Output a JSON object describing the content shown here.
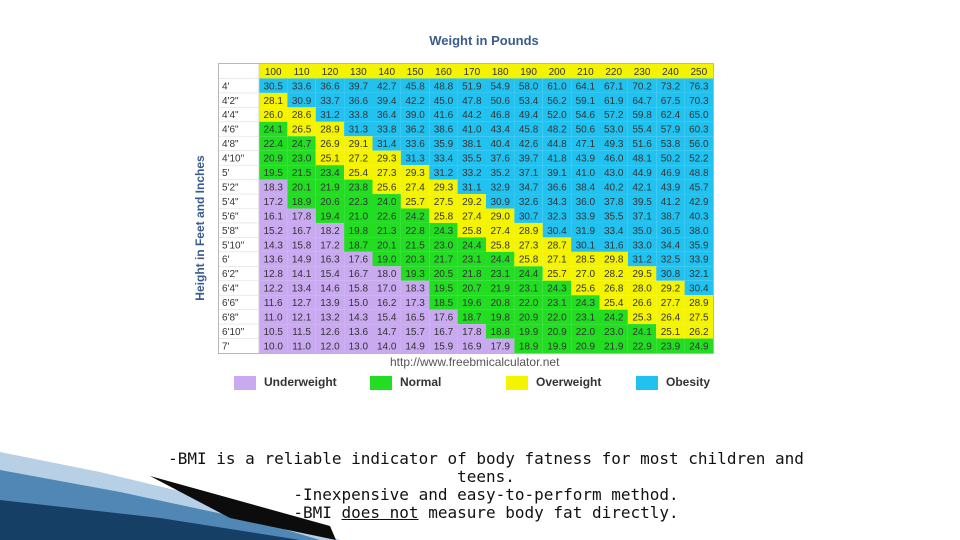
{
  "slide": {
    "caption_lines": [
      "-BMI is a reliable indicator of body fatness for most children and",
      "teens.",
      "-Inexpensive and easy-to-perform method."
    ],
    "caption_last": {
      "pre": "-BMI ",
      "emph": "does not",
      "post": " measure body fat directly."
    }
  },
  "chart_data": {
    "type": "table",
    "title": "Weight in Pounds",
    "ylabel": "Height in Feet and Inches",
    "source": "http://www.freebmicalculator.net",
    "columns": [
      "100",
      "110",
      "120",
      "130",
      "140",
      "150",
      "160",
      "170",
      "180",
      "190",
      "200",
      "210",
      "220",
      "230",
      "240",
      "250"
    ],
    "rows": [
      "4'",
      "4'2\"",
      "4'4\"",
      "4'6\"",
      "4'8\"",
      "4'10\"",
      "5'",
      "5'2\"",
      "5'4\"",
      "5'6\"",
      "5'8\"",
      "5'10\"",
      "6'",
      "6'2\"",
      "6'4\"",
      "6'6\"",
      "6'8\"",
      "6'10\"",
      "7'"
    ],
    "values": [
      [
        "30.5",
        "33.6",
        "36.6",
        "39.7",
        "42.7",
        "45.8",
        "48.8",
        "51.9",
        "54.9",
        "58.0",
        "61.0",
        "64.1",
        "67.1",
        "70.2",
        "73.2",
        "76.3"
      ],
      [
        "28.1",
        "30.9",
        "33.7",
        "36.6",
        "39.4",
        "42.2",
        "45.0",
        "47.8",
        "50.6",
        "53.4",
        "56.2",
        "59.1",
        "61.9",
        "64.7",
        "67.5",
        "70.3"
      ],
      [
        "26.0",
        "28.6",
        "31.2",
        "33.8",
        "36.4",
        "39.0",
        "41.6",
        "44.2",
        "46.8",
        "49.4",
        "52.0",
        "54.6",
        "57.2",
        "59.8",
        "62.4",
        "65.0"
      ],
      [
        "24.1",
        "26.5",
        "28.9",
        "31.3",
        "33.8",
        "36.2",
        "38.6",
        "41.0",
        "43.4",
        "45.8",
        "48.2",
        "50.6",
        "53.0",
        "55.4",
        "57.9",
        "60.3"
      ],
      [
        "22.4",
        "24.7",
        "26.9",
        "29.1",
        "31.4",
        "33.6",
        "35.9",
        "38.1",
        "40.4",
        "42.6",
        "44.8",
        "47.1",
        "49.3",
        "51.6",
        "53.8",
        "56.0"
      ],
      [
        "20.9",
        "23.0",
        "25.1",
        "27.2",
        "29.3",
        "31.3",
        "33.4",
        "35.5",
        "37.6",
        "39.7",
        "41.8",
        "43.9",
        "46.0",
        "48.1",
        "50.2",
        "52.2"
      ],
      [
        "19.5",
        "21.5",
        "23.4",
        "25.4",
        "27.3",
        "29.3",
        "31.2",
        "33.2",
        "35.2",
        "37.1",
        "39.1",
        "41.0",
        "43.0",
        "44.9",
        "46.9",
        "48.8"
      ],
      [
        "18.3",
        "20.1",
        "21.9",
        "23.8",
        "25.6",
        "27.4",
        "29.3",
        "31.1",
        "32.9",
        "34.7",
        "36.6",
        "38.4",
        "40.2",
        "42.1",
        "43.9",
        "45.7"
      ],
      [
        "17.2",
        "18.9",
        "20.6",
        "22.3",
        "24.0",
        "25.7",
        "27.5",
        "29.2",
        "30.9",
        "32.6",
        "34.3",
        "36.0",
        "37.8",
        "39.5",
        "41.2",
        "42.9"
      ],
      [
        "16.1",
        "17.8",
        "19.4",
        "21.0",
        "22.6",
        "24.2",
        "25.8",
        "27.4",
        "29.0",
        "30.7",
        "32.3",
        "33.9",
        "35.5",
        "37.1",
        "38.7",
        "40.3"
      ],
      [
        "15.2",
        "16.7",
        "18.2",
        "19.8",
        "21.3",
        "22.8",
        "24.3",
        "25.8",
        "27.4",
        "28.9",
        "30.4",
        "31.9",
        "33.4",
        "35.0",
        "36.5",
        "38.0"
      ],
      [
        "14.3",
        "15.8",
        "17.2",
        "18.7",
        "20.1",
        "21.5",
        "23.0",
        "24.4",
        "25.8",
        "27.3",
        "28.7",
        "30.1",
        "31.6",
        "33.0",
        "34.4",
        "35.9"
      ],
      [
        "13.6",
        "14.9",
        "16.3",
        "17.6",
        "19.0",
        "20.3",
        "21.7",
        "23.1",
        "24.4",
        "25.8",
        "27.1",
        "28.5",
        "29.8",
        "31.2",
        "32.5",
        "33.9"
      ],
      [
        "12.8",
        "14.1",
        "15.4",
        "16.7",
        "18.0",
        "19.3",
        "20.5",
        "21.8",
        "23.1",
        "24.4",
        "25.7",
        "27.0",
        "28.2",
        "29.5",
        "30.8",
        "32.1"
      ],
      [
        "12.2",
        "13.4",
        "14.6",
        "15.8",
        "17.0",
        "18.3",
        "19.5",
        "20.7",
        "21.9",
        "23.1",
        "24.3",
        "25.6",
        "26.8",
        "28.0",
        "29.2",
        "30.4"
      ],
      [
        "11.6",
        "12.7",
        "13.9",
        "15.0",
        "16.2",
        "17.3",
        "18.5",
        "19.6",
        "20.8",
        "22.0",
        "23.1",
        "24.3",
        "25.4",
        "26.6",
        "27.7",
        "28.9"
      ],
      [
        "11.0",
        "12.1",
        "13.2",
        "14.3",
        "15.4",
        "16.5",
        "17.6",
        "18.7",
        "19.8",
        "20.9",
        "22.0",
        "23.1",
        "24.2",
        "25.3",
        "26.4",
        "27.5"
      ],
      [
        "10.5",
        "11.5",
        "12.6",
        "13.6",
        "14.7",
        "15.7",
        "16.7",
        "17.8",
        "18.8",
        "19.9",
        "20.9",
        "22.0",
        "23.0",
        "24.1",
        "25.1",
        "26.2"
      ],
      [
        "10.0",
        "11.0",
        "12.0",
        "13.0",
        "14.0",
        "14.9",
        "15.9",
        "16.9",
        "17.9",
        "18.9",
        "19.9",
        "20.9",
        "21.9",
        "22.9",
        "23.9",
        "24.9"
      ]
    ],
    "categories": [
      {
        "name": "Underweight",
        "color": "#c9a9ef",
        "max": 18.5
      },
      {
        "name": "Normal",
        "color": "#22dd22",
        "max": 25
      },
      {
        "name": "Overweight",
        "color": "#f4f400",
        "max": 30
      },
      {
        "name": "Obesity",
        "color": "#22c2f0",
        "max": 999
      }
    ],
    "header_color": "#f4f400",
    "grid": true,
    "legend_position": "bottom"
  }
}
